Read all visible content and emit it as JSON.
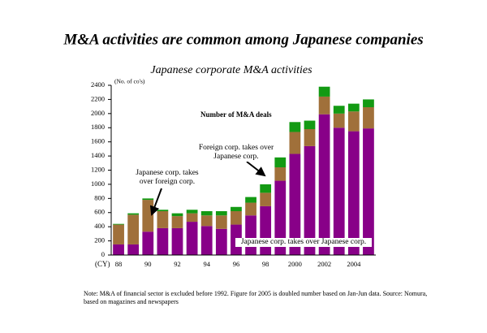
{
  "chart_data": {
    "type": "stacked_bar",
    "title": "M&A activities are common among Japanese companies",
    "subtitle": "Japanese corporate M&A activities",
    "y_unit_label": "(No. of co's)",
    "x_unit_label": "(CY)",
    "chart_label": "Number of M&A deals",
    "note": "Note: M&A of financial sector is excluded before 1992. Figure for 2005 is doubled number based on Jan-Jun data.  Source: Nomura, based on magazines and newspapers",
    "categories": [
      "88",
      null,
      "90",
      null,
      "92",
      null,
      "94",
      null,
      "96",
      null,
      "98",
      null,
      "2000",
      null,
      "2002",
      null,
      "2004",
      null
    ],
    "series": [
      {
        "name": "Japanese corp. takes over Japanese corp.",
        "color": "#880088",
        "values": [
          150,
          150,
          330,
          380,
          380,
          470,
          410,
          370,
          430,
          560,
          690,
          1050,
          1430,
          1540,
          1990,
          1800,
          1750,
          1790
        ]
      },
      {
        "name": "Japanese corp. takes over foreign corp.",
        "color": "#a0703a",
        "values": [
          280,
          420,
          450,
          240,
          170,
          120,
          150,
          190,
          190,
          180,
          190,
          190,
          310,
          240,
          250,
          200,
          280,
          300
        ]
      },
      {
        "name": "Foreign corp. takes over Japanese corp.",
        "color": "#139a13",
        "values": [
          10,
          20,
          20,
          20,
          40,
          50,
          60,
          60,
          60,
          80,
          120,
          140,
          140,
          120,
          140,
          110,
          110,
          110
        ]
      }
    ],
    "ylim": [
      0,
      2400
    ],
    "yticks": [
      0,
      200,
      400,
      600,
      800,
      1000,
      1200,
      1400,
      1600,
      1800,
      2000,
      2200,
      2400
    ]
  }
}
